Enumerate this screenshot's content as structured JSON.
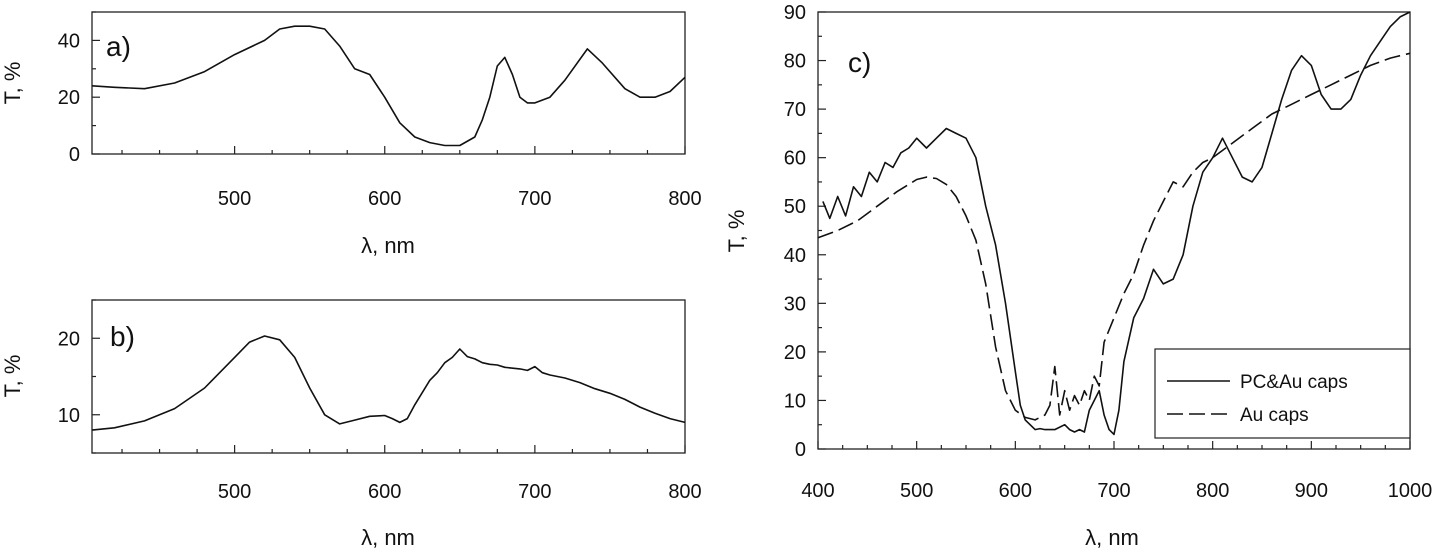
{
  "chart_data": [
    {
      "type": "line",
      "panel_label": "a)",
      "xlabel": "λ, nm",
      "ylabel": "T, %",
      "xlim": [
        405,
        800
      ],
      "ylim": [
        0,
        50
      ],
      "xticks": [
        500,
        600,
        700,
        800
      ],
      "yticks": [
        0,
        20,
        40
      ],
      "series": [
        {
          "x": [
            405,
            420,
            440,
            460,
            480,
            500,
            520,
            530,
            540,
            550,
            560,
            570,
            580,
            590,
            600,
            610,
            620,
            630,
            640,
            650,
            660,
            665,
            670,
            675,
            680,
            685,
            690,
            695,
            700,
            710,
            720,
            735,
            745,
            760,
            770,
            780,
            790,
            800
          ],
          "y": [
            24,
            23.5,
            23,
            25,
            29,
            35,
            40,
            44,
            45,
            45,
            44,
            38,
            30,
            28,
            20,
            11,
            6,
            4,
            3,
            3,
            6,
            12,
            20,
            31,
            34,
            28,
            20,
            18,
            18,
            20,
            26,
            37,
            32,
            23,
            20,
            20,
            22,
            27
          ]
        }
      ]
    },
    {
      "type": "line",
      "panel_label": "b)",
      "xlabel": "λ, nm",
      "ylabel": "T, %",
      "xlim": [
        405,
        800
      ],
      "ylim": [
        5,
        25
      ],
      "xticks": [
        500,
        600,
        700,
        800
      ],
      "yticks": [
        10,
        20
      ],
      "series": [
        {
          "x": [
            405,
            420,
            440,
            460,
            480,
            500,
            510,
            520,
            530,
            540,
            550,
            560,
            570,
            580,
            590,
            600,
            605,
            610,
            615,
            620,
            630,
            635,
            640,
            645,
            650,
            655,
            660,
            665,
            670,
            675,
            680,
            690,
            695,
            700,
            705,
            710,
            720,
            730,
            740,
            750,
            760,
            770,
            780,
            790,
            800
          ],
          "y": [
            8,
            8.3,
            9.2,
            10.8,
            13.5,
            17.5,
            19.5,
            20.3,
            19.8,
            17.5,
            13.5,
            10,
            8.8,
            9.3,
            9.8,
            9.9,
            9.5,
            9,
            9.5,
            11.3,
            14.5,
            15.5,
            16.8,
            17.5,
            18.6,
            17.6,
            17.3,
            16.8,
            16.6,
            16.5,
            16.2,
            16,
            15.8,
            16.3,
            15.5,
            15.2,
            14.8,
            14.2,
            13.4,
            12.8,
            12,
            11,
            10.2,
            9.5,
            9
          ]
        }
      ]
    },
    {
      "type": "line",
      "panel_label": "c)",
      "xlabel": "λ, nm",
      "ylabel": "T, %",
      "xlim": [
        400,
        1000
      ],
      "ylim": [
        0,
        90
      ],
      "xticks": [
        400,
        500,
        600,
        700,
        800,
        900,
        1000
      ],
      "yticks": [
        0,
        10,
        20,
        30,
        40,
        50,
        60,
        70,
        80,
        90
      ],
      "legend_position": "bottom-right",
      "series": [
        {
          "name": "PC&Au caps",
          "style": "solid",
          "x": [
            405,
            412,
            420,
            428,
            436,
            444,
            452,
            460,
            468,
            476,
            484,
            492,
            500,
            510,
            520,
            530,
            540,
            550,
            560,
            570,
            580,
            590,
            600,
            605,
            610,
            615,
            620,
            625,
            630,
            640,
            650,
            655,
            660,
            665,
            670,
            675,
            680,
            685,
            690,
            695,
            700,
            705,
            710,
            720,
            730,
            740,
            750,
            760,
            770,
            780,
            790,
            800,
            810,
            820,
            830,
            840,
            850,
            860,
            870,
            880,
            890,
            900,
            910,
            920,
            930,
            940,
            950,
            960,
            970,
            980,
            990,
            1000
          ],
          "y": [
            51,
            47.5,
            52,
            48,
            54,
            52,
            57,
            55,
            59,
            58,
            61,
            62,
            64,
            62,
            64,
            66,
            65,
            64,
            60,
            50,
            42,
            30,
            16,
            9,
            6,
            5,
            4,
            4.2,
            4,
            4,
            5,
            4,
            3.5,
            4,
            3.5,
            8,
            10,
            12,
            7,
            4,
            3,
            8,
            18,
            27,
            31,
            37,
            34,
            35,
            40,
            50,
            57,
            60,
            64,
            60,
            56,
            55,
            58,
            65,
            72,
            78,
            81,
            79,
            73,
            70,
            70,
            72,
            77,
            81,
            84,
            87,
            89,
            90
          ]
        },
        {
          "name": "Au caps",
          "style": "dashed",
          "x": [
            400,
            420,
            440,
            460,
            480,
            500,
            510,
            520,
            530,
            540,
            550,
            560,
            570,
            580,
            590,
            600,
            610,
            620,
            630,
            635,
            640,
            645,
            650,
            655,
            660,
            665,
            670,
            675,
            680,
            685,
            690,
            700,
            710,
            720,
            730,
            740,
            750,
            760,
            770,
            780,
            790,
            800,
            820,
            840,
            860,
            880,
            900,
            920,
            940,
            960,
            980,
            1000
          ],
          "y": [
            43.5,
            45,
            47,
            50,
            53,
            55.5,
            56,
            55.7,
            54.5,
            52,
            48,
            43,
            34,
            21,
            12,
            8,
            6.5,
            6,
            7,
            9,
            17,
            7,
            12,
            8,
            11,
            9,
            12,
            10,
            15,
            13,
            22,
            27,
            32,
            36,
            42,
            47,
            51,
            55,
            54,
            57,
            59,
            60,
            63,
            66,
            69,
            71,
            73,
            75,
            77,
            79,
            80.5,
            81.5
          ]
        }
      ]
    }
  ]
}
